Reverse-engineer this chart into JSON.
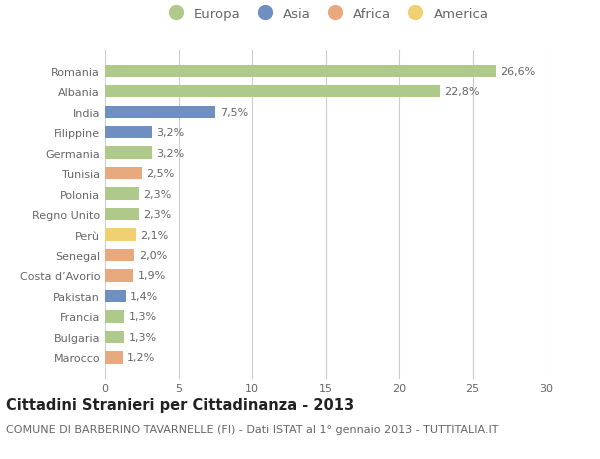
{
  "countries": [
    "Romania",
    "Albania",
    "India",
    "Filippine",
    "Germania",
    "Tunisia",
    "Polonia",
    "Regno Unito",
    "Perù",
    "Senegal",
    "Costa d’Avorio",
    "Pakistan",
    "Francia",
    "Bulgaria",
    "Marocco"
  ],
  "values": [
    26.6,
    22.8,
    7.5,
    3.2,
    3.2,
    2.5,
    2.3,
    2.3,
    2.1,
    2.0,
    1.9,
    1.4,
    1.3,
    1.3,
    1.2
  ],
  "labels": [
    "26,6%",
    "22,8%",
    "7,5%",
    "3,2%",
    "3,2%",
    "2,5%",
    "2,3%",
    "2,3%",
    "2,1%",
    "2,0%",
    "1,9%",
    "1,4%",
    "1,3%",
    "1,3%",
    "1,2%"
  ],
  "continents": [
    "Europa",
    "Europa",
    "Asia",
    "Asia",
    "Europa",
    "Africa",
    "Europa",
    "Europa",
    "America",
    "Africa",
    "Africa",
    "Asia",
    "Europa",
    "Europa",
    "Africa"
  ],
  "colors": {
    "Europa": "#aec98a",
    "Asia": "#6e8fbf",
    "Africa": "#e8a97e",
    "America": "#f0d070"
  },
  "legend_order": [
    "Europa",
    "Asia",
    "Africa",
    "America"
  ],
  "xlim": [
    0,
    30
  ],
  "xticks": [
    0,
    5,
    10,
    15,
    20,
    25,
    30
  ],
  "title": "Cittadini Stranieri per Cittadinanza - 2013",
  "subtitle": "COMUNE DI BARBERINO TAVARNELLE (FI) - Dati ISTAT al 1° gennaio 2013 - TUTTITALIA.IT",
  "bg_color": "#ffffff",
  "grid_color": "#cccccc",
  "bar_height": 0.6,
  "title_fontsize": 10.5,
  "subtitle_fontsize": 8,
  "label_fontsize": 8,
  "tick_fontsize": 8,
  "legend_fontsize": 9.5
}
